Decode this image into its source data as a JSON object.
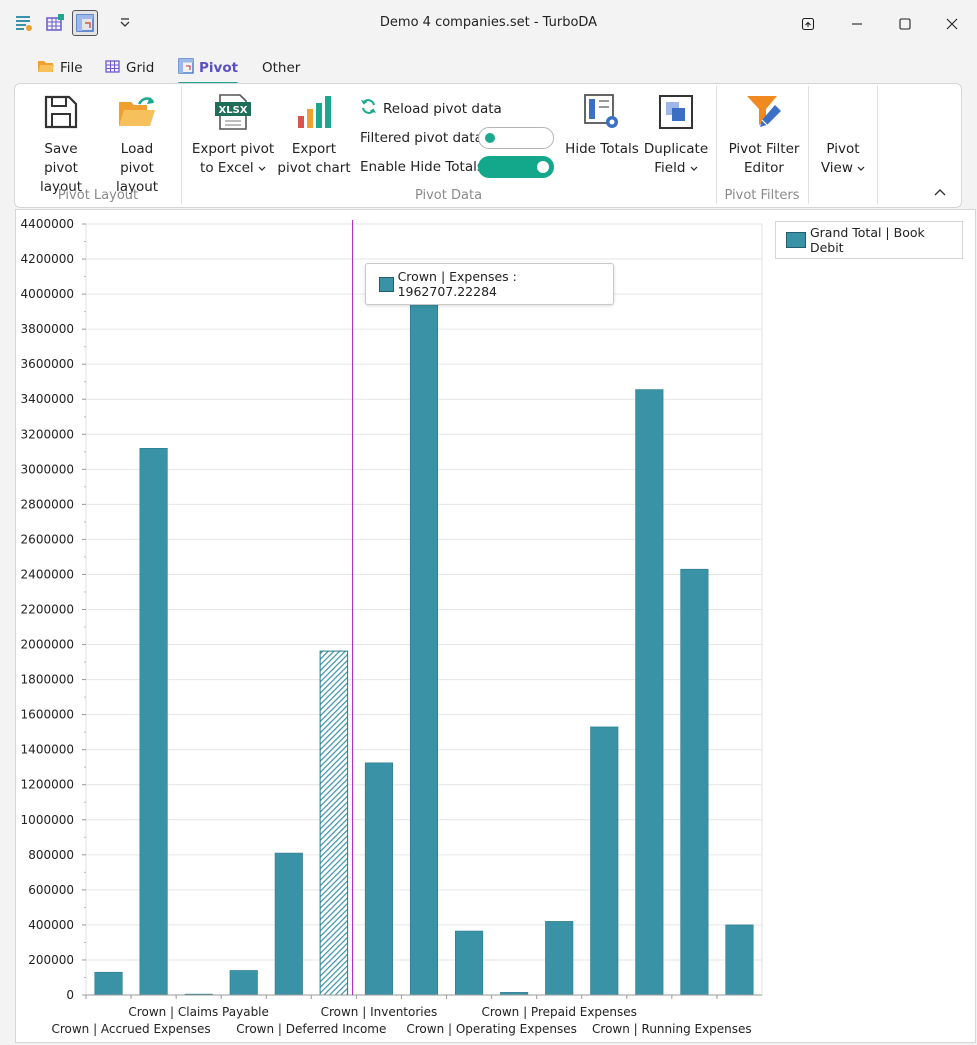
{
  "window": {
    "title": "Demo 4 companies.set - TurboDA"
  },
  "quick_access": [
    "table-edit-icon",
    "grid-add-icon",
    "pivot-icon",
    "dropdown-icon"
  ],
  "menu": [
    {
      "label": "File",
      "icon": "folder-icon"
    },
    {
      "label": "Grid",
      "icon": "grid-icon"
    },
    {
      "label": "Pivot",
      "icon": "pivot-icon",
      "active": true
    },
    {
      "label": "Other"
    }
  ],
  "ribbon": {
    "save_pivot_layout": [
      "Save pivot",
      "layout"
    ],
    "load_pivot_layout": [
      "Load pivot",
      "layout"
    ],
    "group_pivot_layout": "Pivot Layout",
    "export_pivot_excel": [
      "Export pivot",
      "to Excel"
    ],
    "export_excel_icon_text": "XLSX",
    "export_pivot_chart": [
      "Export",
      "pivot chart"
    ],
    "reload_pivot_data": "Reload pivot data",
    "filtered_pivot_data": "Filtered pivot data",
    "filtered_pivot_data_on": false,
    "enable_hide_totals": "Enable Hide Totals",
    "enable_hide_totals_on": true,
    "hide_totals": "Hide Totals",
    "duplicate_field": [
      "Duplicate",
      "Field"
    ],
    "group_pivot_data": "Pivot Data",
    "pivot_filter_editor": [
      "Pivot Filter",
      "Editor"
    ],
    "group_pivot_filters": "Pivot Filters",
    "pivot_view": [
      "Pivot",
      "View"
    ]
  },
  "colors": {
    "accent": "#13a88b",
    "bar": "#3a92a6",
    "bar_border": "#2b7a8c",
    "crosshair": "#a020c0",
    "active_menu": "#5b4fc4"
  },
  "legend": {
    "label": "Grand Total | Book Debit"
  },
  "tooltip": {
    "text": "Crown | Expenses : 1962707.22284"
  },
  "chart_data": {
    "type": "bar",
    "series": [
      {
        "name": "Grand Total | Book Debit",
        "values": [
          130000,
          3120000,
          5000,
          140000,
          810000,
          1962707.22284,
          1325000,
          3980000,
          365000,
          15000,
          420000,
          1530000,
          3455000,
          2430000,
          400000
        ]
      }
    ],
    "categories": [
      "",
      "",
      "",
      "",
      "",
      "",
      "",
      "",
      "",
      "",
      "",
      "",
      "",
      "",
      ""
    ],
    "x_tick_labels_upper": [
      "Crown | Claims Payable",
      "Crown | Inventories",
      "Crown | Prepaid Expenses"
    ],
    "x_tick_labels_lower": [
      "Crown | Accrued Expenses",
      "Crown | Deferred Income",
      "Crown | Operating Expenses",
      "Crown | Running Expenses"
    ],
    "ylim": [
      0,
      4400000
    ],
    "yticks": [
      0,
      200000,
      400000,
      600000,
      800000,
      1000000,
      1200000,
      1400000,
      1600000,
      1800000,
      2000000,
      2200000,
      2400000,
      2600000,
      2800000,
      3000000,
      3200000,
      3400000,
      3600000,
      3800000,
      4000000,
      4200000,
      4400000
    ],
    "highlighted_bar": 5,
    "grid": true,
    "legend_position": "top-right"
  }
}
